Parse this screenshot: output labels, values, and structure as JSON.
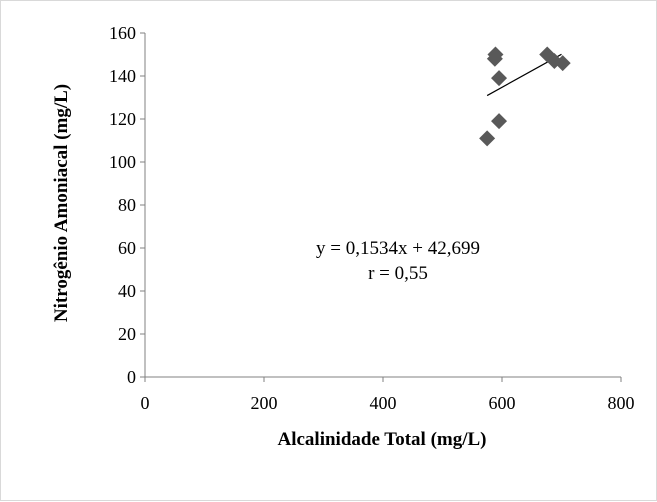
{
  "chart_data": {
    "type": "scatter",
    "xlabel": "Alcalinidade Total (mg/L)",
    "ylabel": "Nitrogênio Amoniacal (mg/L)",
    "xlim": [
      0,
      800
    ],
    "ylim": [
      0,
      160
    ],
    "x_ticks": [
      "0",
      "200",
      "400",
      "600",
      "800"
    ],
    "y_ticks": [
      "0",
      "20",
      "40",
      "60",
      "80",
      "100",
      "120",
      "140",
      "160"
    ],
    "grid": false,
    "legend": "none",
    "marker_color": "#595959",
    "marker": "diamond",
    "points": [
      {
        "x": 575,
        "y": 111
      },
      {
        "x": 595,
        "y": 119
      },
      {
        "x": 595,
        "y": 139
      },
      {
        "x": 588,
        "y": 148
      },
      {
        "x": 589,
        "y": 150
      },
      {
        "x": 676,
        "y": 150
      },
      {
        "x": 688,
        "y": 147
      },
      {
        "x": 702,
        "y": 146
      }
    ],
    "trendline": {
      "type": "linear",
      "slope": 0.1534,
      "intercept": 42.699,
      "x_range": [
        575,
        700
      ]
    },
    "annotations": {
      "equation": "y = 0,1534x + 42,699",
      "r": "r = 0,55"
    }
  }
}
